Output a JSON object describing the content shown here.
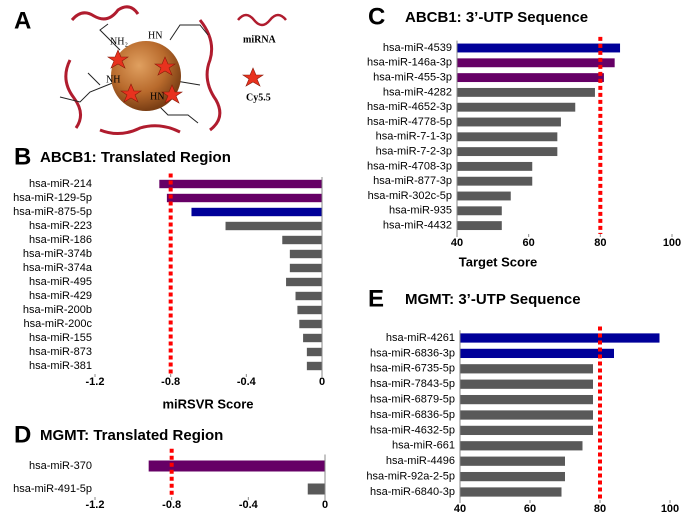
{
  "diagram": {
    "panel_label": "A",
    "groups": [
      "NH₂",
      "HN",
      "NH",
      "HN"
    ],
    "legend": [
      "miRNA",
      "Cy5.5"
    ]
  },
  "chart_data": [
    {
      "type": "bar",
      "orientation": "horizontal",
      "panel_label": "B",
      "title": "ABCB1: Translated Region",
      "x_label": "miRSVR Score",
      "categories": [
        "hsa-miR-214",
        "hsa-miR-129-5p",
        "hsa-miR-875-5p",
        "hsa-miR-223",
        "hsa-miR-186",
        "hsa-miR-374b",
        "hsa-miR-374a",
        "hsa-miR-495",
        "hsa-miR-429",
        "hsa-miR-200b",
        "hsa-miR-200c",
        "hsa-miR-155",
        "hsa-miR-873",
        "hsa-miR-381"
      ],
      "values": [
        -0.86,
        -0.82,
        -0.69,
        -0.51,
        -0.21,
        -0.17,
        -0.17,
        -0.19,
        -0.14,
        -0.13,
        -0.12,
        -0.1,
        -0.08,
        -0.08
      ],
      "colors": [
        "#660066",
        "#660066",
        "#000099",
        "#595959",
        "#595959",
        "#595959",
        "#595959",
        "#595959",
        "#595959",
        "#595959",
        "#595959",
        "#595959",
        "#595959",
        "#595959"
      ],
      "xlim": [
        -1.2,
        0
      ],
      "xticks": [
        -1.2,
        -0.8,
        -0.4,
        0
      ],
      "threshold": -0.8,
      "threshold_color": "#ff0000"
    },
    {
      "type": "bar",
      "orientation": "horizontal",
      "panel_label": "C",
      "title": "ABCB1: 3’-UTP Sequence",
      "x_label": "Target Score",
      "categories": [
        "hsa-miR-4539",
        "hsa-miR-146a-3p",
        "hsa-miR-455-3p",
        "hsa-miR-4282",
        "hsa-miR-4652-3p",
        "hsa-miR-4778-5p",
        "hsa-miR-7-1-3p",
        "hsa-miR-7-2-3p",
        "hsa-miR-4708-3p",
        "hsa-miR-877-3p",
        "hsa-miR-302c-5p",
        "hsa-miR-935",
        "hsa-miR-4432"
      ],
      "values": [
        85.5,
        84,
        81,
        78.5,
        73,
        69,
        68,
        68,
        61,
        61,
        55,
        52.5,
        52.5
      ],
      "colors": [
        "#000099",
        "#660066",
        "#660066",
        "#595959",
        "#595959",
        "#595959",
        "#595959",
        "#595959",
        "#595959",
        "#595959",
        "#595959",
        "#595959",
        "#595959"
      ],
      "category_colors": [
        "#ff0000",
        "#000000",
        "#000000",
        "#000000",
        "#000000",
        "#000000",
        "#000000",
        "#000000",
        "#000000",
        "#000000",
        "#000000",
        "#000000",
        "#000000"
      ],
      "xlim": [
        40,
        100
      ],
      "xticks": [
        40,
        60,
        80,
        100
      ],
      "threshold": 80,
      "threshold_color": "#ff0000"
    },
    {
      "type": "bar",
      "orientation": "horizontal",
      "panel_label": "D",
      "title": "MGMT: Translated Region",
      "categories": [
        "hsa-miR-370",
        "hsa-miR-491-5p"
      ],
      "values": [
        -0.92,
        -0.09
      ],
      "colors": [
        "#660066",
        "#595959"
      ],
      "xlim": [
        -1.2,
        0
      ],
      "xticks": [
        -1.2,
        -0.8,
        -0.4,
        0
      ],
      "threshold": -0.8,
      "threshold_color": "#ff0000"
    },
    {
      "type": "bar",
      "orientation": "horizontal",
      "panel_label": "E",
      "title": "MGMT: 3’-UTP Sequence",
      "categories": [
        "hsa-miR-4261",
        "hsa-miR-6836-3p",
        "hsa-miR-6735-5p",
        "hsa-miR-7843-5p",
        "hsa-miR-6879-5p",
        "hsa-miR-6836-5p",
        "hsa-miR-4632-5p",
        "hsa-miR-661",
        "hsa-miR-4496",
        "hsa-miR-92a-2-5p",
        "hsa-miR-6840-3p"
      ],
      "values": [
        97,
        84,
        78,
        78,
        78,
        78,
        78,
        75,
        70,
        70,
        69
      ],
      "colors": [
        "#000099",
        "#000099",
        "#595959",
        "#595959",
        "#595959",
        "#595959",
        "#595959",
        "#595959",
        "#595959",
        "#595959",
        "#595959"
      ],
      "category_colors": [
        "#ff0000",
        "#000000",
        "#000000",
        "#000000",
        "#000000",
        "#000000",
        "#000000",
        "#000000",
        "#000000",
        "#000000",
        "#000000"
      ],
      "xlim": [
        40,
        100
      ],
      "xticks": [
        40,
        60,
        80,
        100
      ],
      "threshold": 80,
      "threshold_color": "#ff0000"
    }
  ]
}
